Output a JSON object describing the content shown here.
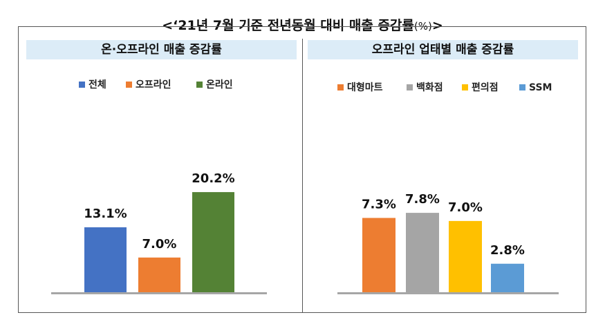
{
  "title": {
    "text": "<‘21년 7월 기준 전년동월 대비 매출 증감률",
    "unit": "(%)",
    "close": ">"
  },
  "chart_data": [
    {
      "type": "bar",
      "title": "온·오프라인 매출 증감률",
      "categories": [
        "전체",
        "오프라인",
        "온라인"
      ],
      "values": [
        13.1,
        7.0,
        20.2
      ],
      "labels": [
        "13.1%",
        "7.0%",
        "20.2%"
      ],
      "colors": [
        "#4472c4",
        "#ed7d31",
        "#548235"
      ],
      "ylim": [
        0,
        23
      ],
      "legend": "top",
      "grid": false
    },
    {
      "type": "bar",
      "title": "오프라인 업태별 매출 증감률",
      "categories": [
        "대형마트",
        "백화점",
        "편의점",
        "SSM"
      ],
      "values": [
        7.3,
        7.8,
        7.0,
        2.8
      ],
      "labels": [
        "7.3%",
        "7.8%",
        "7.0%",
        "2.8%"
      ],
      "colors": [
        "#ed7d31",
        "#a5a5a5",
        "#ffc000",
        "#5b9bd5"
      ],
      "ylim": [
        0,
        9.3
      ],
      "legend": "top",
      "grid": false
    }
  ]
}
